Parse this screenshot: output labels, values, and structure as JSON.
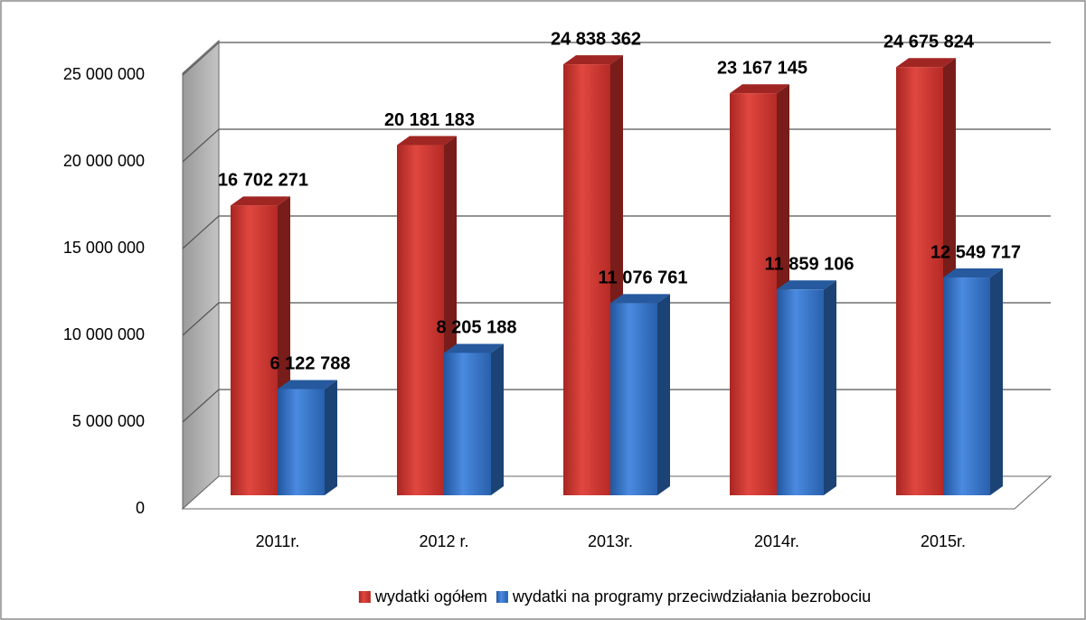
{
  "chart_data": {
    "type": "bar3d",
    "categories": [
      "2011r.",
      "2012 r.",
      "2013r.",
      "2014r.",
      "2015r."
    ],
    "series": [
      {
        "name": "wydatki ogółem",
        "color": "#c8302c",
        "values": [
          16702271,
          20181183,
          24838362,
          23167145,
          24675824
        ],
        "value_labels": [
          "16 702 271",
          "20 181 183",
          "24 838 362",
          "23 167 145",
          "24 675 824"
        ]
      },
      {
        "name": "wydatki na programy przeciwdziałania bezrobociu",
        "color": "#2f6fc4",
        "values": [
          6122788,
          8205188,
          11076761,
          11859106,
          12549717
        ],
        "value_labels": [
          "6 122 788",
          "8 205 188",
          "11 076 761",
          "11 859 106",
          "12 549 717"
        ]
      }
    ],
    "ylim": [
      0,
      25000000
    ],
    "yticks": [
      0,
      {
        "value": 5000000,
        "label": "5 000 000"
      },
      {
        "value": 10000000,
        "label": "10 000 000"
      },
      {
        "value": 15000000,
        "label": "15 000 000"
      },
      {
        "value": 20000000,
        "label": "20 000 000"
      },
      {
        "value": 25000000,
        "label": "25 000 000"
      }
    ],
    "grid": true,
    "legend": "bottom"
  }
}
